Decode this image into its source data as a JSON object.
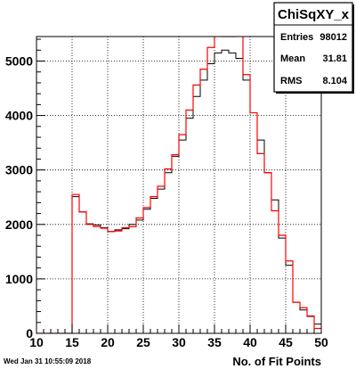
{
  "stats": {
    "title": "ChiSqXY_x",
    "rows": [
      {
        "label": "Entries",
        "value": "98012"
      },
      {
        "label": "Mean",
        "value": "31.81"
      },
      {
        "label": "RMS",
        "value": "8.104"
      }
    ]
  },
  "timestamp": "Wed Jan 31 10:55:09 2018",
  "chart_data": {
    "type": "histogram",
    "title": "",
    "xlabel": "No. of Fit Points",
    "ylabel": "",
    "xlim": [
      10,
      50
    ],
    "ylim": [
      0,
      5450
    ],
    "x_ticks": [
      10,
      15,
      20,
      25,
      30,
      35,
      40,
      45,
      50
    ],
    "y_ticks": [
      0,
      1000,
      2000,
      3000,
      4000,
      5000
    ],
    "grid": true,
    "bin_width": 1,
    "bin_edges_start": 10,
    "series": [
      {
        "color": "#000000",
        "values": [
          0,
          0,
          0,
          0,
          0,
          2510,
          2230,
          2010,
          1990,
          1940,
          1870,
          1900,
          1920,
          2000,
          2080,
          2280,
          2480,
          2650,
          2950,
          3250,
          3550,
          3950,
          4350,
          4650,
          4950,
          5150,
          5200,
          5150,
          5050,
          4650,
          4050,
          3550,
          2950,
          2450,
          1750,
          1250,
          570,
          430,
          310,
          170
        ]
      },
      {
        "color": "#ff0000",
        "values": [
          0,
          0,
          0,
          0,
          0,
          2550,
          2230,
          2000,
          1960,
          1930,
          1870,
          1880,
          1940,
          1960,
          2120,
          2310,
          2510,
          2700,
          3020,
          3280,
          3650,
          4100,
          4560,
          4850,
          5250,
          5500,
          5450,
          5450,
          5500,
          4750,
          4050,
          3300,
          2950,
          2250,
          1800,
          1330,
          570,
          470,
          320,
          90
        ]
      }
    ]
  }
}
